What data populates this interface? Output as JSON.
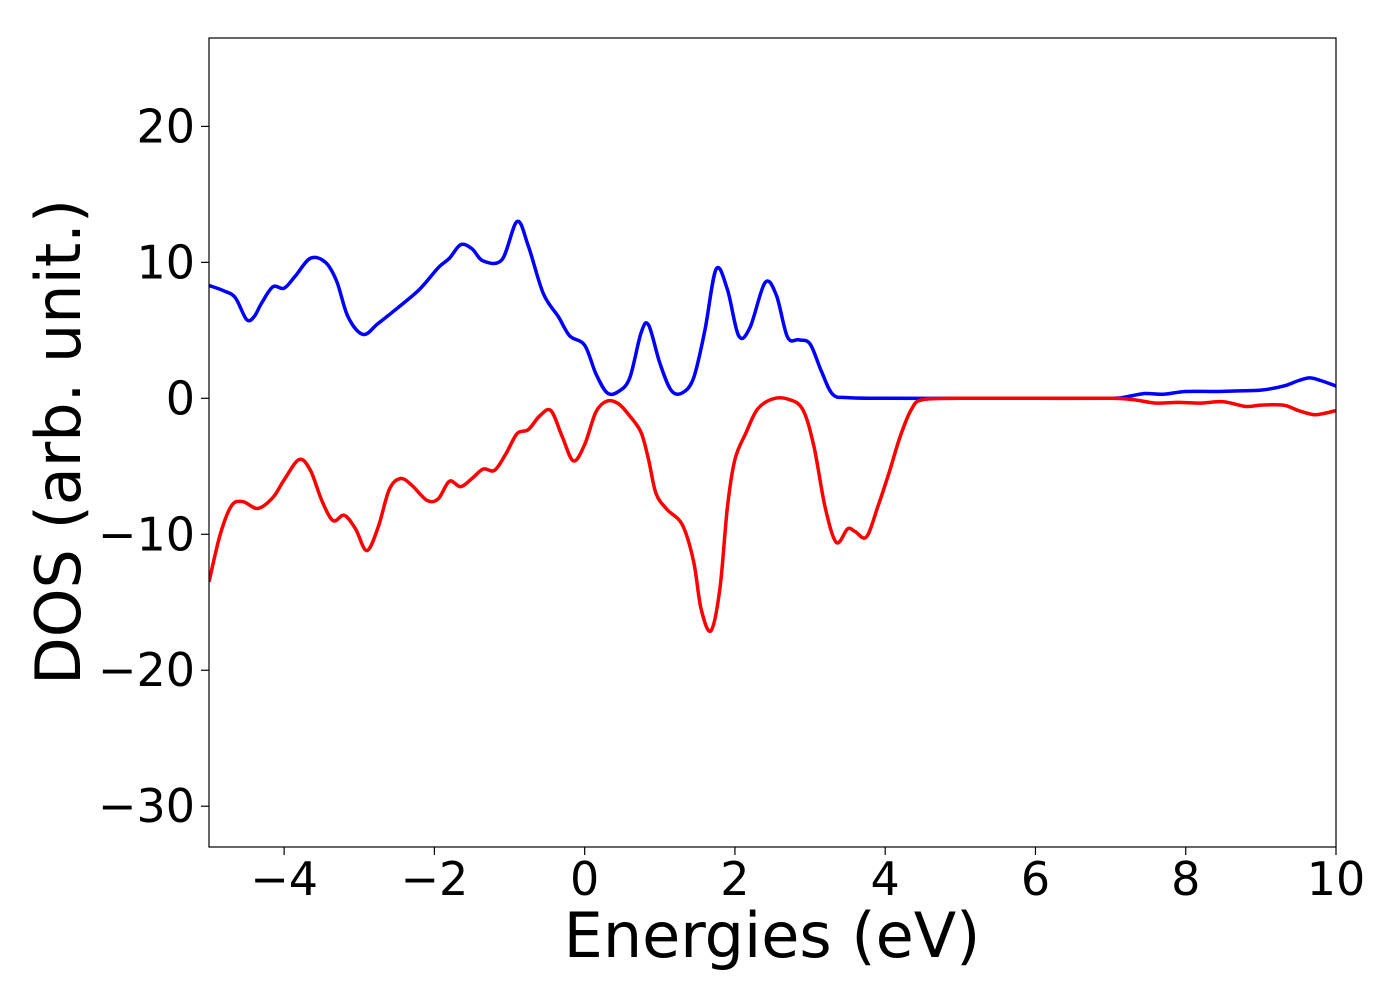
{
  "chart_data": {
    "type": "line",
    "title": "",
    "xlabel": "Energies (eV)",
    "ylabel": "DOS (arb. unit.)",
    "xlim": [
      -5,
      10
    ],
    "ylim": [
      -33,
      26.5
    ],
    "xticks": [
      -4,
      -2,
      0,
      2,
      4,
      6,
      8,
      10
    ],
    "xtick_labels": [
      "−4",
      "−2",
      "0",
      "2",
      "4",
      "6",
      "8",
      "10"
    ],
    "yticks": [
      20,
      10,
      0,
      -10,
      -20,
      -30
    ],
    "ytick_labels": [
      "20",
      "10",
      "0",
      "−10",
      "−20",
      "−30"
    ],
    "grid": false,
    "series": [
      {
        "color": "#0000ff",
        "points": [
          [
            -5.0,
            8.3
          ],
          [
            -4.8,
            7.9
          ],
          [
            -4.65,
            7.4
          ],
          [
            -4.5,
            5.8
          ],
          [
            -4.4,
            6.0
          ],
          [
            -4.3,
            7.0
          ],
          [
            -4.15,
            8.2
          ],
          [
            -4.0,
            8.1
          ],
          [
            -3.85,
            9.0
          ],
          [
            -3.65,
            10.3
          ],
          [
            -3.45,
            10.0
          ],
          [
            -3.3,
            8.6
          ],
          [
            -3.15,
            6.0
          ],
          [
            -2.95,
            4.7
          ],
          [
            -2.75,
            5.5
          ],
          [
            -2.5,
            6.6
          ],
          [
            -2.2,
            8.0
          ],
          [
            -1.95,
            9.6
          ],
          [
            -1.8,
            10.3
          ],
          [
            -1.65,
            11.3
          ],
          [
            -1.5,
            11.0
          ],
          [
            -1.35,
            10.1
          ],
          [
            -1.1,
            10.2
          ],
          [
            -0.9,
            13.0
          ],
          [
            -0.75,
            11.2
          ],
          [
            -0.55,
            7.7
          ],
          [
            -0.35,
            6.0
          ],
          [
            -0.2,
            4.6
          ],
          [
            0.0,
            3.9
          ],
          [
            0.15,
            1.8
          ],
          [
            0.3,
            0.4
          ],
          [
            0.45,
            0.5
          ],
          [
            0.6,
            1.5
          ],
          [
            0.75,
            4.8
          ],
          [
            0.85,
            5.4
          ],
          [
            1.0,
            2.6
          ],
          [
            1.15,
            0.6
          ],
          [
            1.3,
            0.4
          ],
          [
            1.45,
            1.5
          ],
          [
            1.6,
            5.0
          ],
          [
            1.75,
            9.5
          ],
          [
            1.9,
            8.0
          ],
          [
            2.05,
            4.6
          ],
          [
            2.2,
            5.2
          ],
          [
            2.4,
            8.5
          ],
          [
            2.55,
            7.6
          ],
          [
            2.7,
            4.5
          ],
          [
            2.85,
            4.3
          ],
          [
            3.0,
            4.0
          ],
          [
            3.15,
            2.0
          ],
          [
            3.3,
            0.3
          ],
          [
            3.5,
            0.05
          ],
          [
            4.0,
            0.0
          ],
          [
            5.0,
            0.0
          ],
          [
            6.0,
            0.0
          ],
          [
            7.0,
            0.0
          ],
          [
            7.2,
            0.1
          ],
          [
            7.45,
            0.35
          ],
          [
            7.7,
            0.3
          ],
          [
            8.0,
            0.5
          ],
          [
            8.4,
            0.5
          ],
          [
            8.7,
            0.55
          ],
          [
            9.0,
            0.6
          ],
          [
            9.3,
            0.9
          ],
          [
            9.5,
            1.3
          ],
          [
            9.65,
            1.5
          ],
          [
            9.8,
            1.3
          ],
          [
            10.0,
            0.9
          ]
        ]
      },
      {
        "color": "#ff0000",
        "points": [
          [
            -5.0,
            -13.5
          ],
          [
            -4.85,
            -10.0
          ],
          [
            -4.7,
            -7.9
          ],
          [
            -4.55,
            -7.6
          ],
          [
            -4.35,
            -8.1
          ],
          [
            -4.15,
            -7.3
          ],
          [
            -4.0,
            -6.0
          ],
          [
            -3.8,
            -4.5
          ],
          [
            -3.65,
            -5.3
          ],
          [
            -3.5,
            -7.5
          ],
          [
            -3.35,
            -9.0
          ],
          [
            -3.2,
            -8.6
          ],
          [
            -3.05,
            -9.6
          ],
          [
            -2.9,
            -11.2
          ],
          [
            -2.75,
            -9.5
          ],
          [
            -2.6,
            -6.7
          ],
          [
            -2.45,
            -5.9
          ],
          [
            -2.3,
            -6.4
          ],
          [
            -2.1,
            -7.5
          ],
          [
            -1.95,
            -7.4
          ],
          [
            -1.8,
            -6.1
          ],
          [
            -1.65,
            -6.5
          ],
          [
            -1.5,
            -5.9
          ],
          [
            -1.35,
            -5.2
          ],
          [
            -1.2,
            -5.3
          ],
          [
            -1.05,
            -4.1
          ],
          [
            -0.9,
            -2.6
          ],
          [
            -0.75,
            -2.3
          ],
          [
            -0.6,
            -1.3
          ],
          [
            -0.45,
            -0.9
          ],
          [
            -0.3,
            -2.8
          ],
          [
            -0.15,
            -4.6
          ],
          [
            0.0,
            -3.4
          ],
          [
            0.15,
            -1.0
          ],
          [
            0.3,
            -0.2
          ],
          [
            0.45,
            -0.4
          ],
          [
            0.6,
            -1.3
          ],
          [
            0.75,
            -2.5
          ],
          [
            0.85,
            -4.5
          ],
          [
            0.95,
            -7.0
          ],
          [
            1.1,
            -8.2
          ],
          [
            1.3,
            -9.3
          ],
          [
            1.45,
            -12.0
          ],
          [
            1.55,
            -15.5
          ],
          [
            1.68,
            -17.1
          ],
          [
            1.8,
            -14.0
          ],
          [
            1.9,
            -8.0
          ],
          [
            2.0,
            -4.5
          ],
          [
            2.15,
            -2.5
          ],
          [
            2.3,
            -0.8
          ],
          [
            2.5,
            -0.05
          ],
          [
            2.7,
            -0.05
          ],
          [
            2.9,
            -0.8
          ],
          [
            3.05,
            -3.5
          ],
          [
            3.2,
            -8.0
          ],
          [
            3.35,
            -10.6
          ],
          [
            3.5,
            -9.6
          ],
          [
            3.6,
            -9.8
          ],
          [
            3.75,
            -10.2
          ],
          [
            3.9,
            -8.0
          ],
          [
            4.05,
            -5.5
          ],
          [
            4.2,
            -2.8
          ],
          [
            4.35,
            -0.8
          ],
          [
            4.5,
            -0.1
          ],
          [
            5.0,
            0.0
          ],
          [
            6.0,
            0.0
          ],
          [
            7.0,
            0.0
          ],
          [
            7.3,
            -0.1
          ],
          [
            7.6,
            -0.35
          ],
          [
            7.9,
            -0.3
          ],
          [
            8.2,
            -0.35
          ],
          [
            8.5,
            -0.25
          ],
          [
            8.8,
            -0.6
          ],
          [
            9.0,
            -0.5
          ],
          [
            9.3,
            -0.5
          ],
          [
            9.5,
            -0.9
          ],
          [
            9.7,
            -1.2
          ],
          [
            9.85,
            -1.1
          ],
          [
            10.0,
            -0.9
          ]
        ]
      }
    ]
  }
}
